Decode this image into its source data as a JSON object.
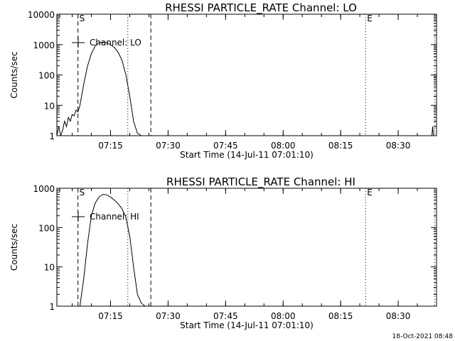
{
  "footer_timestamp": "18-Oct-2021 08:48",
  "chart_data": [
    {
      "type": "line",
      "title": "RHESSI PARTICLE_RATE Channel: LO",
      "xlabel": "Start Time (14-Jul-11 07:01:10)",
      "ylabel": "Counts/sec",
      "y_scale": "log",
      "ylim": [
        1,
        10000
      ],
      "y_ticks": [
        1,
        10,
        100,
        1000,
        10000
      ],
      "y_tick_labels": [
        "1",
        "10",
        "100",
        "1000",
        "10000"
      ],
      "x_range_minutes": [
        0,
        99
      ],
      "x_ticks_minutes": [
        14,
        29,
        44,
        59,
        74,
        89
      ],
      "x_tick_labels": [
        "07:15",
        "07:30",
        "07:45",
        "08:00",
        "08:15",
        "08:30"
      ],
      "legend": "Channel: LO",
      "markers": [
        {
          "label": "S",
          "minute": 5.5,
          "style": "dashed"
        },
        {
          "label": "",
          "minute": 18.5,
          "style": "dotted"
        },
        {
          "label": "",
          "minute": 24.5,
          "style": "dashed"
        },
        {
          "label": "E",
          "minute": 80.5,
          "style": "dotted"
        },
        {
          "label": "",
          "minute": 98.5,
          "style": "dotted"
        }
      ],
      "series": [
        {
          "name": "LO",
          "x": [
            0,
            0.5,
            1,
            1.5,
            2,
            2.5,
            3,
            3.5,
            4,
            4.5,
            5,
            5.5,
            6,
            7,
            8,
            9,
            10,
            11,
            12,
            13,
            14,
            15,
            16,
            17,
            18,
            19,
            20,
            21,
            22,
            23,
            23.5,
            97.8,
            98.0,
            98.2
          ],
          "y": [
            1,
            2,
            1,
            1.5,
            3,
            2,
            4,
            3,
            5,
            4.5,
            7,
            6,
            10,
            50,
            200,
            500,
            900,
            1150,
            1200,
            1150,
            1000,
            800,
            550,
            300,
            100,
            20,
            3,
            1.2,
            1,
            1,
            1,
            1,
            2,
            1
          ]
        }
      ]
    },
    {
      "type": "line",
      "title": "RHESSI PARTICLE_RATE Channel: HI",
      "xlabel": "Start Time (14-Jul-11 07:01:10)",
      "ylabel": "Counts/sec",
      "y_scale": "log",
      "ylim": [
        1,
        1000
      ],
      "y_ticks": [
        1,
        10,
        100,
        1000
      ],
      "y_tick_labels": [
        "1",
        "10",
        "100",
        "1000"
      ],
      "x_range_minutes": [
        0,
        99
      ],
      "x_ticks_minutes": [
        14,
        29,
        44,
        59,
        74,
        89
      ],
      "x_tick_labels": [
        "07:15",
        "07:30",
        "07:45",
        "08:00",
        "08:15",
        "08:30"
      ],
      "legend": "Channel: HI",
      "markers": [
        {
          "label": "S",
          "minute": 5.5,
          "style": "dashed"
        },
        {
          "label": "",
          "minute": 18.5,
          "style": "dotted"
        },
        {
          "label": "",
          "minute": 24.5,
          "style": "dashed"
        },
        {
          "label": "E",
          "minute": 80.5,
          "style": "dotted"
        },
        {
          "label": "",
          "minute": 98.5,
          "style": "dotted"
        }
      ],
      "series": [
        {
          "name": "HI",
          "x": [
            6,
            7,
            8,
            9,
            10,
            11,
            12,
            13,
            14,
            15,
            16,
            17,
            18,
            19,
            20,
            21,
            22,
            23,
            23.5
          ],
          "y": [
            1,
            5,
            40,
            200,
            420,
            600,
            700,
            680,
            600,
            500,
            400,
            300,
            180,
            60,
            10,
            2,
            1.2,
            1,
            1
          ]
        }
      ]
    }
  ]
}
